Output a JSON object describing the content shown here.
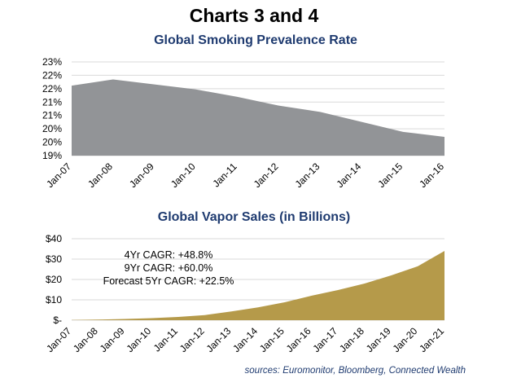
{
  "page": {
    "title": "Charts 3 and 4",
    "source": "sources: Euromonitor, Bloomberg, Connected Wealth"
  },
  "chart_data": [
    {
      "type": "area",
      "title": "Global Smoking Prevalence Rate",
      "x": [
        "Jan-07",
        "Jan-08",
        "Jan-09",
        "Jan-10",
        "Jan-11",
        "Jan-12",
        "Jan-13",
        "Jan-14",
        "Jan-15",
        "Jan-16"
      ],
      "y_tick_labels": [
        "19%",
        "20%",
        "20%",
        "21%",
        "21%",
        "22%",
        "22%",
        "23%"
      ],
      "ylim": [
        19.0,
        22.75
      ],
      "grid": true,
      "series": [
        {
          "values": [
            21.8,
            22.05,
            21.85,
            21.65,
            21.35,
            21.0,
            20.75,
            20.35,
            19.95,
            19.75
          ]
        }
      ],
      "color": "#929497"
    },
    {
      "type": "area",
      "title": "Global Vapor Sales (in Billions)",
      "x": [
        "Jan-07",
        "Jan-08",
        "Jan-09",
        "Jan-10",
        "Jan-11",
        "Jan-12",
        "Jan-13",
        "Jan-14",
        "Jan-15",
        "Jan-16",
        "Jan-17",
        "Jan-18",
        "Jan-19",
        "Jan-20",
        "Jan-21"
      ],
      "y_tick_labels": [
        "$-",
        "$10",
        "$20",
        "$30",
        "$40"
      ],
      "ylim": [
        0,
        40
      ],
      "grid": true,
      "series": [
        {
          "values": [
            0.1,
            0.3,
            0.6,
            1.0,
            1.6,
            2.5,
            4.3,
            6.3,
            8.8,
            12.0,
            14.8,
            18.0,
            22.0,
            26.5,
            34.0
          ]
        }
      ],
      "annotations": [
        "4Yr CAGR: +48.8%",
        "9Yr CAGR: +60.0%",
        "Forecast 5Yr CAGR: +22.5%"
      ],
      "color": "#b59a4a"
    }
  ]
}
